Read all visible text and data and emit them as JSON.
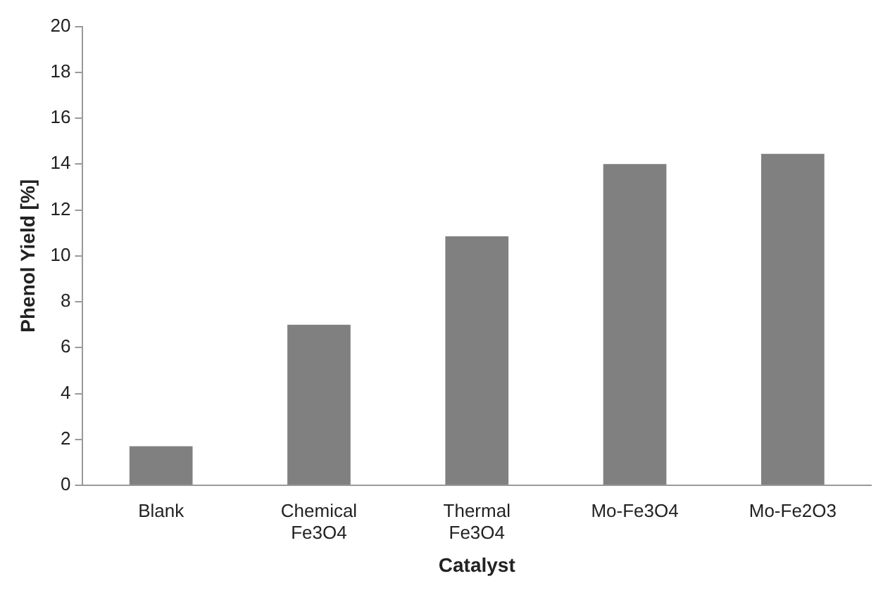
{
  "chart_data": {
    "type": "bar",
    "xlabel": "Catalyst",
    "ylabel": "Phenol Yield [%]",
    "categories": [
      "Blank",
      "Chemical Fe3O4",
      "Thermal Fe3O4",
      "Mo-Fe3O4",
      "Mo-Fe2O3"
    ],
    "values": [
      1.7,
      7.0,
      10.85,
      14.0,
      14.45
    ],
    "color": "#808080",
    "ylim": [
      0,
      20
    ],
    "yticks": [
      0,
      2,
      4,
      6,
      8,
      10,
      12,
      14,
      16,
      18,
      20
    ],
    "grid": false,
    "legend": false
  }
}
